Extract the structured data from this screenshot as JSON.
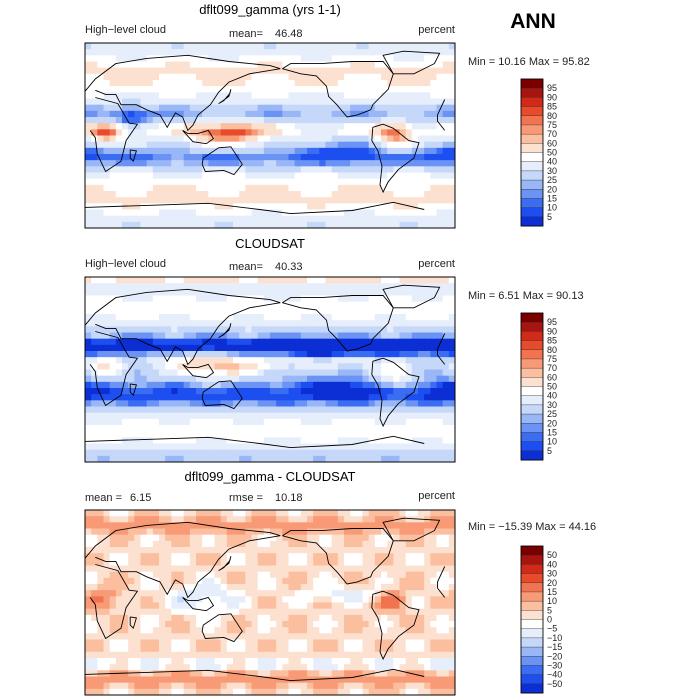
{
  "season": "ANN",
  "colors": {
    "main_palette": [
      "#000f80",
      "#0b2fd4",
      "#1d4ff0",
      "#3b6df2",
      "#6a93f4",
      "#99b7f7",
      "#c6d8fa",
      "#e6eefc",
      "#ffffff",
      "#fde1d0",
      "#fbbf9f",
      "#f89a76",
      "#f27350",
      "#e84a2c",
      "#d12a18",
      "#a81511",
      "#7a0000"
    ],
    "diff_palette": [
      "#000f80",
      "#0b2fd4",
      "#1d4ff0",
      "#3b6df2",
      "#6a93f4",
      "#99b7f7",
      "#c6d8fa",
      "#e6eefc",
      "#ffffff",
      "#fde1d0",
      "#fbbf9f",
      "#f89a76",
      "#f27350",
      "#e84a2c",
      "#d12a18",
      "#a81511",
      "#7a0000"
    ]
  },
  "chart_data": [
    {
      "type": "heatmap",
      "title": "dflt099_gamma (yrs 1-1)",
      "variable": "High−level cloud",
      "stat_label": "mean=",
      "stat_value": "46.48",
      "units": "percent",
      "min_max": "Min =  10.16 Max =  95.82",
      "min": 10.16,
      "max": 95.82,
      "colorbar_levels": [
        "95",
        "90",
        "85",
        "80",
        "75",
        "70",
        "60",
        "50",
        "40",
        "30",
        "25",
        "20",
        "15",
        "10",
        "5"
      ],
      "field": "model"
    },
    {
      "type": "heatmap",
      "title": "CLOUDSAT",
      "variable": "High−level cloud",
      "stat_label": "mean=",
      "stat_value": "40.33",
      "units": "percent",
      "min_max": "Min =   6.51 Max =  90.13",
      "min": 6.51,
      "max": 90.13,
      "colorbar_levels": [
        "95",
        "90",
        "85",
        "80",
        "75",
        "70",
        "60",
        "50",
        "40",
        "30",
        "25",
        "20",
        "15",
        "10",
        "5"
      ],
      "field": "obs"
    },
    {
      "type": "heatmap",
      "title": "dflt099_gamma - CLOUDSAT",
      "stat_label": "mean =",
      "stat_value": "6.15",
      "rmse_label": "rmse =",
      "rmse_value": "10.18",
      "units": "percent",
      "min_max": "Min = −15.39 Max =  44.16",
      "min": -15.39,
      "max": 44.16,
      "colorbar_levels": [
        "50",
        "40",
        "30",
        "20",
        "15",
        "10",
        "5",
        "0",
        "−5",
        "−10",
        "−15",
        "−20",
        "−30",
        "−40",
        "−50"
      ],
      "field": "diff"
    }
  ]
}
